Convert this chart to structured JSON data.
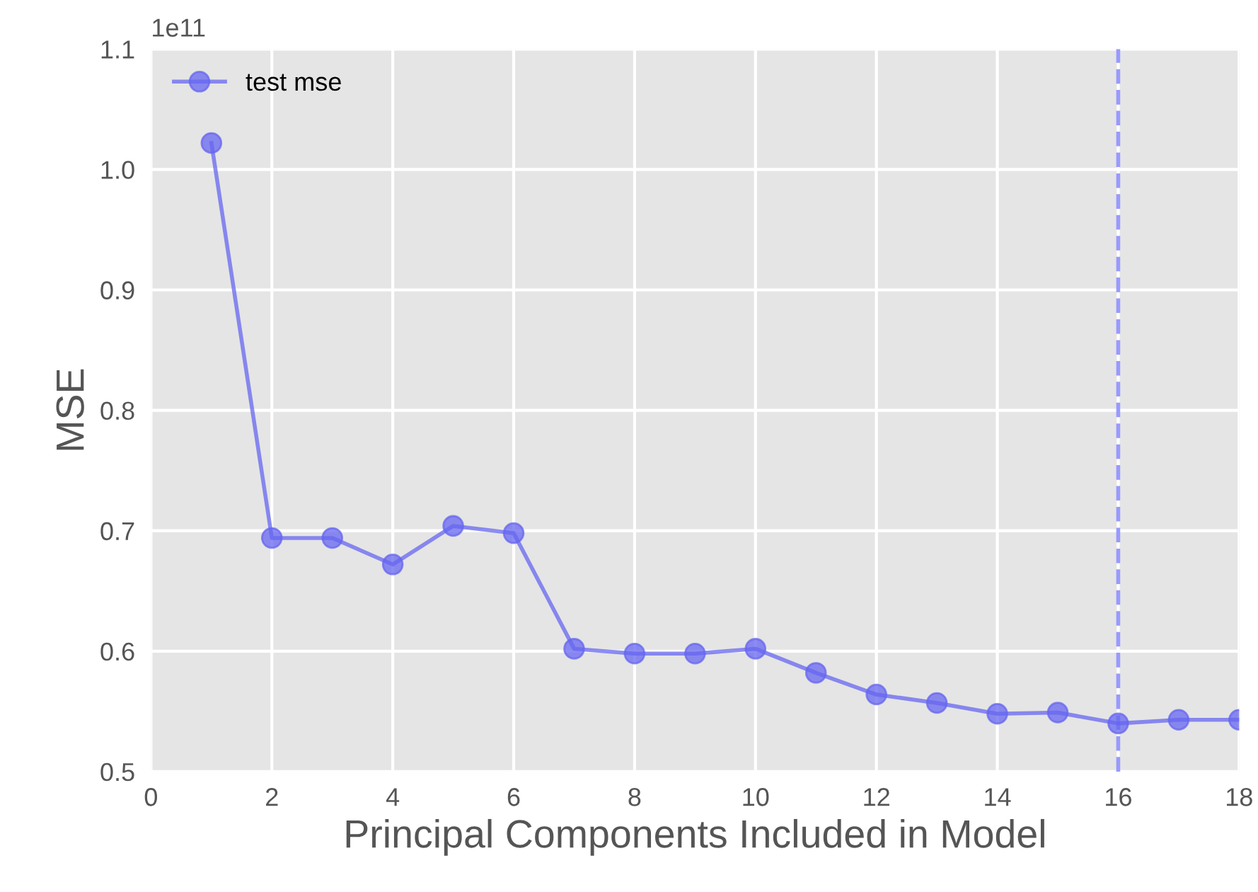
{
  "chart_data": {
    "type": "line",
    "xlabel": "Principal Components Included in Model",
    "ylabel": "MSE",
    "x": [
      1,
      2,
      3,
      4,
      5,
      6,
      7,
      8,
      9,
      10,
      11,
      12,
      13,
      14,
      15,
      16,
      17,
      18
    ],
    "series": [
      {
        "name": "test mse",
        "color": "#6666f0",
        "values": [
          1.022,
          0.694,
          0.694,
          0.672,
          0.704,
          0.698,
          0.602,
          0.598,
          0.598,
          0.602,
          0.582,
          0.564,
          0.557,
          0.548,
          0.549,
          0.54,
          0.543,
          0.543
        ]
      }
    ],
    "xlim": [
      0,
      18
    ],
    "xticks": [
      0,
      2,
      4,
      6,
      8,
      10,
      12,
      14,
      16,
      18
    ],
    "ylim": [
      0.5,
      1.1
    ],
    "yticks": [
      0.5,
      0.6,
      0.7,
      0.8,
      0.9,
      {
        "value": 1.0,
        "label": "1.0"
      },
      1.1
    ],
    "annotations": [
      "1e11"
    ],
    "ref_lines": [
      {
        "axis": "x",
        "value": 16,
        "color": "#9999ff",
        "line_style": "dashed"
      }
    ],
    "grid": true,
    "legend": "top left",
    "marker": "circle",
    "line_style": "solid"
  }
}
